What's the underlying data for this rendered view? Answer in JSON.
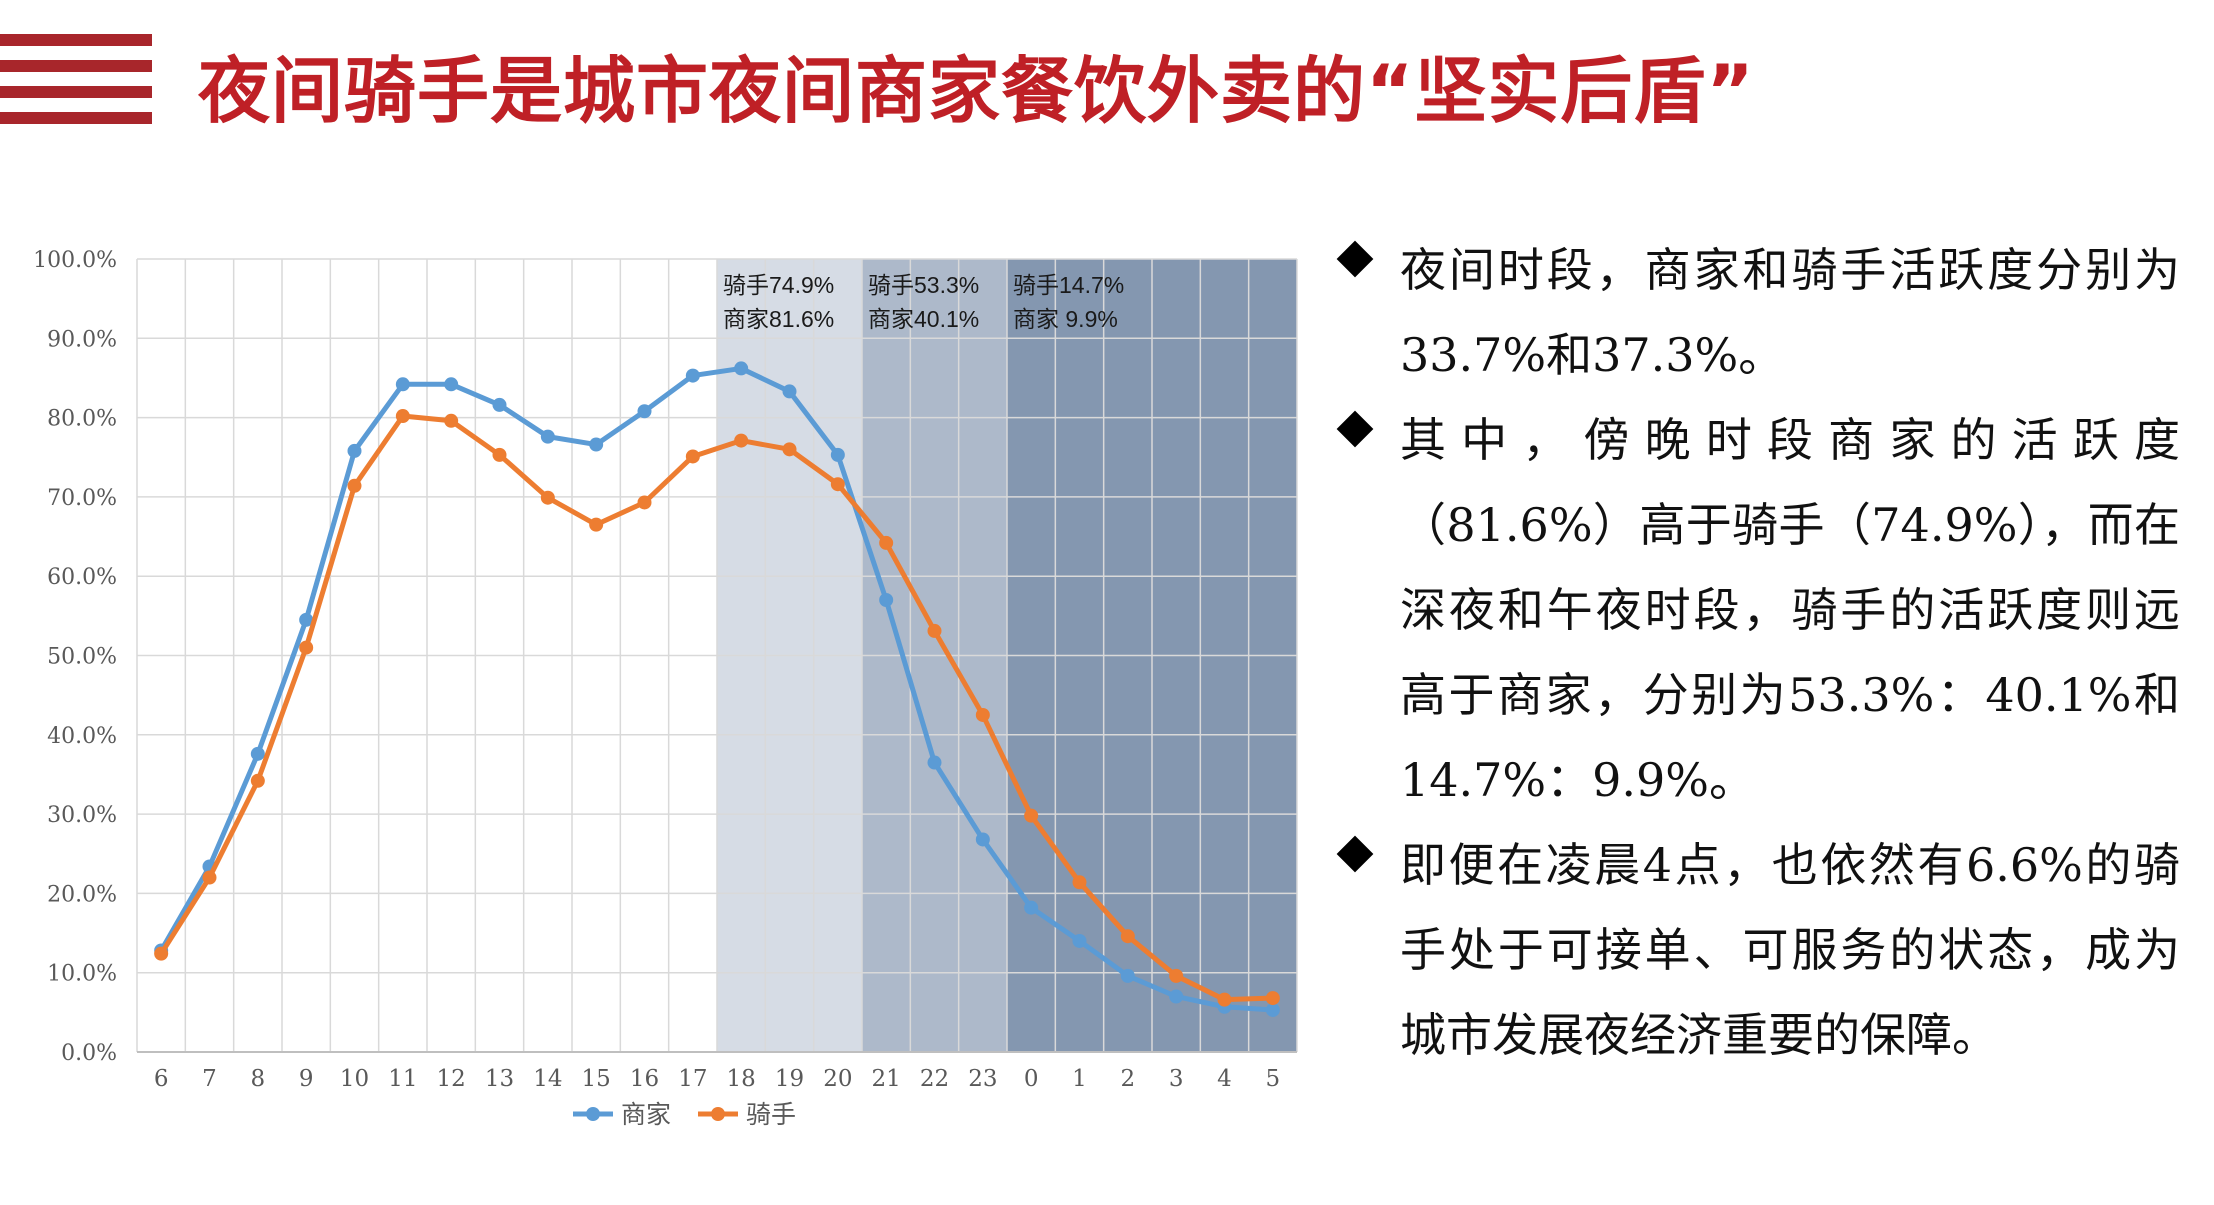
{
  "title": "夜间骑手是城市夜间商家餐饮外卖的“坚实后盾”",
  "bullets": [
    "夜间时段，商家和骑手活跃度分别为33.7%和37.3%。",
    "其中，傍晚时段商家的活跃度（81.6%）高于骑手（74.9%），而在深夜和午夜时段，骑手的活跃度则远高于商家，分别为53.3%：40.1%和14.7%：9.9%。",
    "即便在凌晨4点，也依然有6.6%的骑手处于可接单、可服务的状态，成为城市发展夜经济重要的保障。"
  ],
  "chart_data": {
    "type": "line",
    "categories": [
      "6",
      "7",
      "8",
      "9",
      "10",
      "11",
      "12",
      "13",
      "14",
      "15",
      "16",
      "17",
      "18",
      "19",
      "20",
      "21",
      "22",
      "23",
      "0",
      "1",
      "2",
      "3",
      "4",
      "5"
    ],
    "ylim": [
      0,
      100
    ],
    "yticks": [
      "0.0%",
      "10.0%",
      "20.0%",
      "30.0%",
      "40.0%",
      "50.0%",
      "60.0%",
      "70.0%",
      "80.0%",
      "90.0%",
      "100.0%"
    ],
    "series": [
      {
        "name": "商家",
        "color": "#5b9bd5",
        "values": [
          12.8,
          23.4,
          37.6,
          54.5,
          75.8,
          84.2,
          84.2,
          81.6,
          77.6,
          76.6,
          80.8,
          85.3,
          86.2,
          83.3,
          75.3,
          57.0,
          36.5,
          26.8,
          18.2,
          14.0,
          9.6,
          7.0,
          5.7,
          5.3
        ]
      },
      {
        "name": "骑手",
        "color": "#ed7d31",
        "values": [
          12.4,
          22.0,
          34.2,
          51.0,
          71.4,
          80.2,
          79.6,
          75.3,
          69.9,
          66.5,
          69.3,
          75.1,
          77.1,
          76.0,
          71.6,
          64.2,
          53.1,
          42.5,
          29.8,
          21.4,
          14.6,
          9.6,
          6.6,
          6.8
        ]
      }
    ],
    "bands": [
      {
        "from": 12,
        "to": 15,
        "color": "#d6dce5",
        "labels": [
          "骑手74.9%",
          "商家81.6%"
        ]
      },
      {
        "from": 15,
        "to": 18,
        "color": "#adb9ca",
        "labels": [
          "骑手53.3%",
          "商家40.1%"
        ]
      },
      {
        "from": 18,
        "to": 24,
        "color": "#8497b0",
        "labels": [
          "骑手14.7%",
          "商家  9.9%"
        ]
      }
    ],
    "legend_position": "bottom",
    "grid": true
  }
}
